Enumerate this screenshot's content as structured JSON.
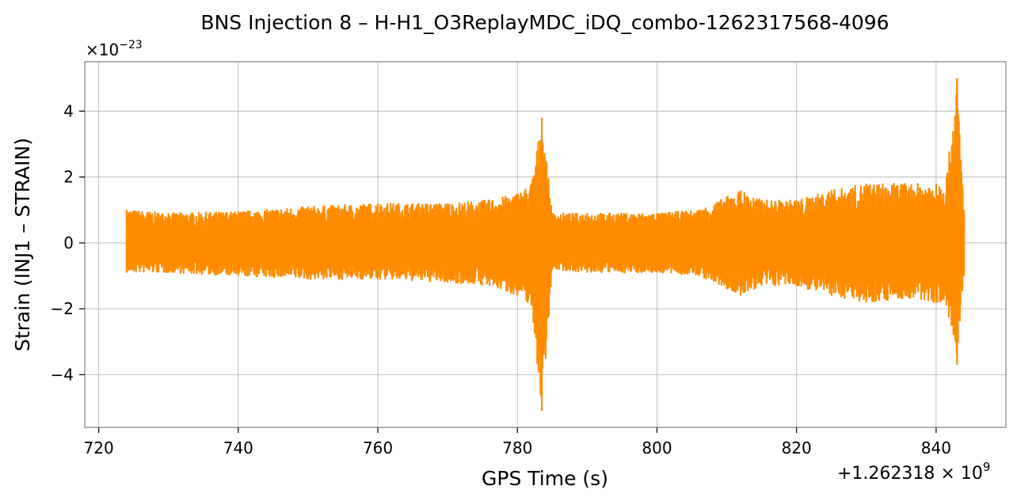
{
  "chart_data": {
    "type": "line",
    "title": "BNS Injection 8 – H-H1_O3ReplayMDC_iDQ_combo-1262317568-4096",
    "xlabel": "GPS Time (s)",
    "ylabel": "Strain (INJ1 – STRAIN)",
    "x_offset_label": "+1.262318 × 10",
    "x_offset_exp": "9",
    "y_scale_label": "×10",
    "y_scale_exp": "−23",
    "xlim": [
      718,
      850
    ],
    "ylim": [
      -5.6,
      5.5
    ],
    "grid": true,
    "x_ticks": [
      720,
      740,
      760,
      780,
      800,
      820,
      840
    ],
    "x_tick_labels": [
      "720",
      "740",
      "760",
      "780",
      "800",
      "820",
      "840"
    ],
    "y_ticks": [
      -4,
      -2,
      0,
      2,
      4
    ],
    "y_tick_labels": [
      "−4",
      "−2",
      "0",
      "2",
      "4"
    ],
    "series": [
      {
        "color": "#ff8c00",
        "x_start": 724,
        "x_end": 844,
        "envelope_x": [
          724,
          730,
          740,
          750,
          760,
          770,
          776,
          780,
          782,
          783.5,
          785,
          790,
          800,
          806,
          810,
          812,
          815,
          820,
          825,
          830,
          835,
          840,
          841.5,
          843,
          844
        ],
        "envelope_upper": [
          1.0,
          0.9,
          0.95,
          1.1,
          1.2,
          1.2,
          1.3,
          1.5,
          1.8,
          3.8,
          0.9,
          0.9,
          0.9,
          1.0,
          1.4,
          1.6,
          1.3,
          1.3,
          1.6,
          1.8,
          1.8,
          1.8,
          2.0,
          5.0,
          1.0
        ],
        "envelope_lower": [
          -0.9,
          -0.9,
          -1.0,
          -1.1,
          -1.1,
          -1.2,
          -1.3,
          -1.6,
          -1.9,
          -5.1,
          -0.8,
          -0.9,
          -0.9,
          -1.0,
          -1.4,
          -1.6,
          -1.3,
          -1.3,
          -1.6,
          -1.8,
          -1.7,
          -1.8,
          -1.9,
          -3.7,
          -1.0
        ]
      }
    ]
  }
}
